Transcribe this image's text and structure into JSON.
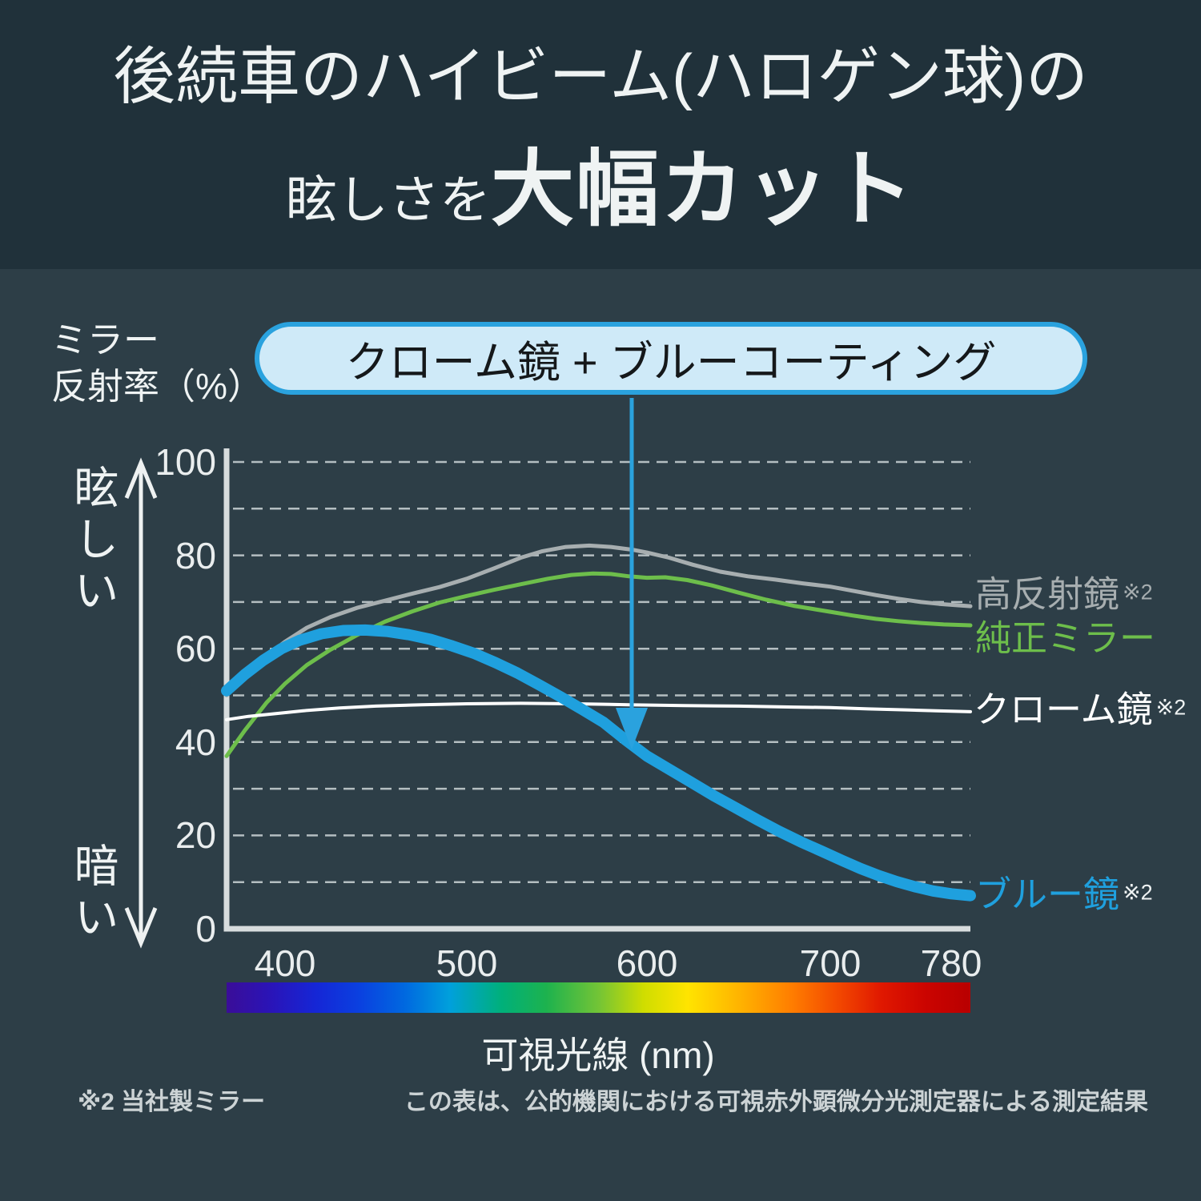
{
  "header": {
    "title_line1": "後続車のハイビーム(ハロゲン球)の",
    "title_line2_small": "眩しさを",
    "title_line2_large": "大幅カット"
  },
  "callout": {
    "text": "クローム鏡 + ブルーコーティング"
  },
  "y_axis": {
    "title_line1": "ミラー",
    "title_line2": "反射率（%）",
    "high_label": "眩しい",
    "low_label": "暗い"
  },
  "x_axis": {
    "label": "可視光線 (nm)"
  },
  "footnotes": {
    "left": "※2 当社製ミラー",
    "right": "この表は、公的機関における可視赤外顕微分光測定器による測定結果"
  },
  "colors": {
    "header_bg": "#20313a",
    "body_bg": "#2d3e47",
    "accent_blue": "#2aa2de",
    "bubble_fill": "#cfeaf8",
    "grid": "#c3cccf",
    "axis": "#d7dcdd"
  },
  "chart_data": {
    "type": "line",
    "title": "ミラー反射率の分光特性",
    "xlabel": "可視光線 (nm)",
    "ylabel": "ミラー反射率（%）",
    "xlim": [
      368,
      793
    ],
    "ylim": [
      0,
      100
    ],
    "x_ticks": [
      400,
      500,
      600,
      700,
      780
    ],
    "y_ticks": [
      0,
      20,
      40,
      60,
      80,
      100
    ],
    "grid": "horizontal dashed lines every 10%",
    "legend_position": "right of curve ends",
    "series": [
      {
        "id": "high-reflection-mirror",
        "name": "高反射鏡",
        "note": "※2",
        "color": "#a7aeb0",
        "width": 5,
        "points": [
          [
            368,
            50
          ],
          [
            378,
            54
          ],
          [
            390,
            58.5
          ],
          [
            400,
            61.5
          ],
          [
            412,
            64.5
          ],
          [
            425,
            66.8
          ],
          [
            440,
            68.8
          ],
          [
            455,
            70.3
          ],
          [
            470,
            71.8
          ],
          [
            485,
            73.2
          ],
          [
            500,
            75
          ],
          [
            515,
            77.2
          ],
          [
            530,
            79.5
          ],
          [
            542,
            80.9
          ],
          [
            555,
            81.8
          ],
          [
            568,
            82.1
          ],
          [
            580,
            81.8
          ],
          [
            592,
            81.2
          ],
          [
            600,
            80.6
          ],
          [
            612,
            79.5
          ],
          [
            625,
            78
          ],
          [
            640,
            76.5
          ],
          [
            655,
            75.5
          ],
          [
            670,
            74.8
          ],
          [
            685,
            74
          ],
          [
            700,
            73.3
          ],
          [
            715,
            72.4
          ],
          [
            730,
            71.5
          ],
          [
            745,
            70.7
          ],
          [
            760,
            70
          ],
          [
            772,
            69.6
          ],
          [
            780,
            69.4
          ],
          [
            793,
            69.1
          ]
        ]
      },
      {
        "id": "genuine-mirror",
        "name": "純正ミラー",
        "note": "",
        "color": "#6dbe4b",
        "width": 5,
        "points": [
          [
            368,
            37
          ],
          [
            378,
            42.5
          ],
          [
            390,
            48.5
          ],
          [
            400,
            52.5
          ],
          [
            412,
            56.5
          ],
          [
            425,
            59.8
          ],
          [
            440,
            63
          ],
          [
            455,
            65.8
          ],
          [
            470,
            68
          ],
          [
            485,
            69.9
          ],
          [
            500,
            71.3
          ],
          [
            515,
            72.6
          ],
          [
            530,
            73.8
          ],
          [
            545,
            75
          ],
          [
            558,
            75.8
          ],
          [
            570,
            76.1
          ],
          [
            580,
            76
          ],
          [
            590,
            75.5
          ],
          [
            600,
            75.2
          ],
          [
            610,
            75.3
          ],
          [
            622,
            74.7
          ],
          [
            635,
            73.6
          ],
          [
            650,
            72
          ],
          [
            665,
            70.5
          ],
          [
            680,
            69.2
          ],
          [
            700,
            67.9
          ],
          [
            715,
            67.1
          ],
          [
            730,
            66.4
          ],
          [
            745,
            65.9
          ],
          [
            760,
            65.5
          ],
          [
            775,
            65.2
          ],
          [
            793,
            65
          ]
        ]
      },
      {
        "id": "chrome-mirror",
        "name": "クローム鏡",
        "note": "※2",
        "color": "#ffffff",
        "width": 4,
        "points": [
          [
            368,
            44.8
          ],
          [
            380,
            45.5
          ],
          [
            395,
            46.1
          ],
          [
            410,
            46.7
          ],
          [
            430,
            47.3
          ],
          [
            450,
            47.7
          ],
          [
            475,
            48
          ],
          [
            500,
            48.2
          ],
          [
            530,
            48.3
          ],
          [
            560,
            48.2
          ],
          [
            590,
            48
          ],
          [
            620,
            47.8
          ],
          [
            650,
            47.7
          ],
          [
            680,
            47.5
          ],
          [
            700,
            47.4
          ],
          [
            725,
            47.1
          ],
          [
            750,
            46.9
          ],
          [
            770,
            46.7
          ],
          [
            793,
            46.5
          ]
        ]
      },
      {
        "id": "blue-mirror",
        "name": "ブルー鏡",
        "note": "※2",
        "color": "#1fa0de",
        "width": 14,
        "points": [
          [
            368,
            51
          ],
          [
            378,
            54.5
          ],
          [
            388,
            57.5
          ],
          [
            398,
            60
          ],
          [
            408,
            61.8
          ],
          [
            420,
            63.2
          ],
          [
            432,
            63.9
          ],
          [
            444,
            64
          ],
          [
            456,
            63.7
          ],
          [
            468,
            63
          ],
          [
            480,
            62
          ],
          [
            492,
            60.6
          ],
          [
            504,
            59
          ],
          [
            516,
            57
          ],
          [
            528,
            54.8
          ],
          [
            540,
            52.3
          ],
          [
            552,
            49.7
          ],
          [
            564,
            47
          ],
          [
            576,
            44.2
          ],
          [
            588,
            40.5
          ],
          [
            600,
            37
          ],
          [
            612,
            34.2
          ],
          [
            624,
            31.4
          ],
          [
            636,
            28.6
          ],
          [
            648,
            26
          ],
          [
            660,
            23.4
          ],
          [
            672,
            20.9
          ],
          [
            684,
            18.6
          ],
          [
            696,
            16.5
          ],
          [
            708,
            14.6
          ],
          [
            720,
            12.9
          ],
          [
            732,
            11.4
          ],
          [
            744,
            10.1
          ],
          [
            756,
            9
          ],
          [
            768,
            8.1
          ],
          [
            780,
            7.5
          ],
          [
            793,
            7.1
          ]
        ]
      }
    ]
  }
}
